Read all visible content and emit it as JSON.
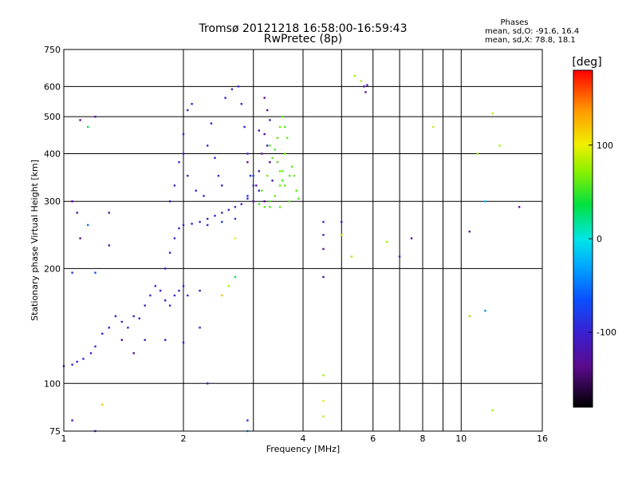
{
  "title_line1": "Tromsø 20121218 16:58:00-16:59:43",
  "title_line2": "RwPretec (8p)",
  "info": {
    "heading": "Phases",
    "line1": "mean, sd,O:  -91.6, 16.4",
    "line2": "mean, sd,X:  78.8, 18.1"
  },
  "colorbar": {
    "label": "[deg]",
    "range": [
      -180,
      180
    ],
    "ticks": [
      {
        "value": 100,
        "label": "100"
      },
      {
        "value": 0,
        "label": "0"
      },
      {
        "value": -100,
        "label": "-100"
      }
    ]
  },
  "chart_data": {
    "type": "scatter",
    "title": "Tromsø 20121218 16:58:00-16:59:43",
    "subtitle": "RwPretec (8p)",
    "xlabel": "Frequency [MHz]",
    "ylabel": "Stationary phase Virtual Height [km]",
    "xscale": "log",
    "yscale": "log",
    "xlim": [
      1,
      16
    ],
    "ylim": [
      75,
      750
    ],
    "grid": true,
    "xticks": [
      {
        "value": 1,
        "label": "1"
      },
      {
        "value": 2,
        "label": "2"
      },
      {
        "value": 4,
        "label": "4"
      },
      {
        "value": 6,
        "label": "6"
      },
      {
        "value": 8,
        "label": "8"
      },
      {
        "value": 10,
        "label": "10"
      },
      {
        "value": 16,
        "label": "16"
      }
    ],
    "yticks": [
      {
        "value": 75,
        "label": "75"
      },
      {
        "value": 100,
        "label": "100"
      },
      {
        "value": 200,
        "label": "200"
      },
      {
        "value": 300,
        "label": "300"
      },
      {
        "value": 400,
        "label": "400"
      },
      {
        "value": 500,
        "label": "500"
      },
      {
        "value": 600,
        "label": "600"
      },
      {
        "value": 750,
        "label": "750"
      }
    ],
    "xgrid": [
      1,
      2,
      3,
      4,
      5,
      6,
      7,
      8,
      9,
      10,
      16
    ],
    "ygrid": [
      75,
      100,
      200,
      300,
      400,
      500,
      600,
      750
    ],
    "series": [
      {
        "points": [
          [
            1.0,
            111,
            -100
          ],
          [
            1.05,
            112,
            -100
          ],
          [
            1.08,
            114,
            -100
          ],
          [
            1.12,
            116,
            -95
          ],
          [
            1.17,
            120,
            -105
          ],
          [
            1.2,
            125,
            -100
          ],
          [
            1.25,
            135,
            -105
          ],
          [
            1.3,
            140,
            -100
          ],
          [
            1.35,
            150,
            -110
          ],
          [
            1.4,
            145,
            -105
          ],
          [
            1.45,
            140,
            -95
          ],
          [
            1.5,
            150,
            -100
          ],
          [
            1.55,
            148,
            -110
          ],
          [
            1.6,
            160,
            -105
          ],
          [
            1.65,
            170,
            -100
          ],
          [
            1.7,
            180,
            -95
          ],
          [
            1.75,
            175,
            -105
          ],
          [
            1.8,
            165,
            -110
          ],
          [
            1.85,
            160,
            -100
          ],
          [
            1.9,
            170,
            -95
          ],
          [
            1.95,
            175,
            -105
          ],
          [
            2.0,
            180,
            -100
          ],
          [
            2.05,
            170,
            -95
          ],
          [
            1.6,
            130,
            -110
          ],
          [
            1.8,
            130,
            -105
          ],
          [
            2.0,
            128,
            -100
          ],
          [
            2.2,
            140,
            -105
          ],
          [
            1.8,
            200,
            -100
          ],
          [
            1.85,
            220,
            -110
          ],
          [
            1.9,
            240,
            -105
          ],
          [
            1.95,
            255,
            -100
          ],
          [
            2.0,
            260,
            -95
          ],
          [
            2.1,
            262,
            -110
          ],
          [
            2.2,
            265,
            -105
          ],
          [
            2.3,
            270,
            -100
          ],
          [
            2.4,
            275,
            -95
          ],
          [
            2.5,
            280,
            -110
          ],
          [
            2.6,
            285,
            -105
          ],
          [
            2.7,
            290,
            -100
          ],
          [
            2.8,
            295,
            -110
          ],
          [
            2.9,
            305,
            -105
          ],
          [
            1.85,
            300,
            -100
          ],
          [
            1.9,
            330,
            -105
          ],
          [
            1.95,
            380,
            -95
          ],
          [
            2.0,
            450,
            -100
          ],
          [
            2.05,
            520,
            -110
          ],
          [
            2.1,
            540,
            -105
          ],
          [
            2.0,
            400,
            -100
          ],
          [
            2.05,
            350,
            -105
          ],
          [
            2.15,
            320,
            -95
          ],
          [
            2.25,
            310,
            -100
          ],
          [
            2.3,
            420,
            -105
          ],
          [
            2.35,
            480,
            -110
          ],
          [
            2.4,
            390,
            -100
          ],
          [
            2.45,
            350,
            -95
          ],
          [
            2.5,
            330,
            -105
          ],
          [
            2.55,
            560,
            -100
          ],
          [
            2.65,
            590,
            -105
          ],
          [
            2.75,
            600,
            -95
          ],
          [
            2.8,
            540,
            -100
          ],
          [
            2.85,
            470,
            -105
          ],
          [
            2.9,
            400,
            -100
          ],
          [
            2.95,
            350,
            -95
          ],
          [
            3.0,
            330,
            -110
          ],
          [
            3.1,
            320,
            -100
          ],
          [
            2.3,
            260,
            -90
          ],
          [
            2.5,
            265,
            -85
          ],
          [
            2.7,
            270,
            -80
          ],
          [
            2.9,
            310,
            -90
          ],
          [
            3.0,
            350,
            -80
          ]
        ]
      },
      {
        "points": [
          [
            3.0,
            300,
            -125
          ],
          [
            3.05,
            330,
            -130
          ],
          [
            3.1,
            360,
            -125
          ],
          [
            3.15,
            400,
            -120
          ],
          [
            3.2,
            450,
            -130
          ],
          [
            3.25,
            420,
            -125
          ],
          [
            3.3,
            380,
            -135
          ],
          [
            3.35,
            340,
            -125
          ],
          [
            3.2,
            300,
            -130
          ],
          [
            3.1,
            460,
            -125
          ],
          [
            3.2,
            560,
            -130
          ],
          [
            3.25,
            520,
            -125
          ],
          [
            3.3,
            490,
            -120
          ],
          [
            2.9,
            380,
            -125
          ],
          [
            1.4,
            130,
            -125
          ],
          [
            1.5,
            120,
            -130
          ],
          [
            1.2,
            500,
            -130
          ]
        ]
      },
      {
        "points": [
          [
            3.1,
            295,
            55
          ],
          [
            3.2,
            290,
            60
          ],
          [
            3.3,
            300,
            55
          ],
          [
            3.4,
            310,
            60
          ],
          [
            3.5,
            330,
            65
          ],
          [
            3.55,
            360,
            60
          ],
          [
            3.6,
            400,
            65
          ],
          [
            3.65,
            440,
            60
          ],
          [
            3.6,
            470,
            55
          ],
          [
            3.55,
            500,
            60
          ],
          [
            3.5,
            470,
            65
          ],
          [
            3.45,
            440,
            60
          ],
          [
            3.4,
            410,
            55
          ],
          [
            3.45,
            380,
            60
          ],
          [
            3.5,
            360,
            65
          ],
          [
            3.55,
            340,
            55
          ],
          [
            3.6,
            330,
            60
          ],
          [
            3.7,
            350,
            55
          ],
          [
            3.75,
            370,
            60
          ],
          [
            3.8,
            350,
            65
          ],
          [
            3.85,
            320,
            60
          ],
          [
            3.9,
            305,
            55
          ],
          [
            3.7,
            300,
            60
          ],
          [
            3.5,
            290,
            65
          ],
          [
            3.3,
            290,
            55
          ],
          [
            3.15,
            320,
            60
          ],
          [
            3.25,
            350,
            65
          ],
          [
            3.35,
            390,
            60
          ],
          [
            3.3,
            420,
            55
          ]
        ]
      },
      {
        "points": [
          [
            5.4,
            640,
            75
          ],
          [
            5.6,
            620,
            80
          ],
          [
            5.7,
            600,
            -120
          ],
          [
            5.75,
            580,
            -125
          ],
          [
            5.8,
            605,
            -110
          ],
          [
            4.5,
            265,
            -100
          ],
          [
            4.5,
            245,
            -105
          ],
          [
            4.5,
            225,
            -130
          ],
          [
            4.5,
            190,
            -120
          ],
          [
            4.5,
            105,
            80
          ],
          [
            4.5,
            90,
            100
          ],
          [
            4.5,
            82,
            85
          ],
          [
            5.0,
            265,
            -110
          ],
          [
            5.0,
            245,
            80
          ],
          [
            5.3,
            215,
            80
          ],
          [
            6.5,
            235,
            80
          ],
          [
            7.0,
            215,
            -100
          ],
          [
            7.5,
            240,
            -120
          ],
          [
            8.5,
            470,
            85
          ],
          [
            10.5,
            250,
            -120
          ],
          [
            11.0,
            400,
            80
          ],
          [
            11.5,
            300,
            -20
          ],
          [
            12.0,
            510,
            85
          ],
          [
            12.5,
            420,
            80
          ],
          [
            14.0,
            290,
            -120
          ],
          [
            11.5,
            155,
            -40
          ],
          [
            12.0,
            85,
            80
          ],
          [
            10.5,
            150,
            75
          ],
          [
            1.1,
            490,
            -130
          ],
          [
            1.15,
            470,
            30
          ],
          [
            1.05,
            300,
            -120
          ],
          [
            1.08,
            280,
            -120
          ],
          [
            1.1,
            240,
            -140
          ],
          [
            1.05,
            195,
            -90
          ],
          [
            1.2,
            195,
            -70
          ],
          [
            1.15,
            260,
            -50
          ],
          [
            1.3,
            280,
            -120
          ],
          [
            1.3,
            230,
            -120
          ],
          [
            1.2,
            75,
            -90
          ],
          [
            1.05,
            80,
            -120
          ],
          [
            1.25,
            88,
            120
          ],
          [
            2.3,
            100,
            -120
          ],
          [
            2.7,
            240,
            100
          ],
          [
            2.7,
            190,
            40
          ],
          [
            2.6,
            180,
            80
          ],
          [
            2.5,
            170,
            120
          ],
          [
            2.2,
            175,
            -110
          ],
          [
            2.9,
            80,
            -100
          ],
          [
            2.9,
            75,
            -20
          ]
        ]
      }
    ]
  }
}
